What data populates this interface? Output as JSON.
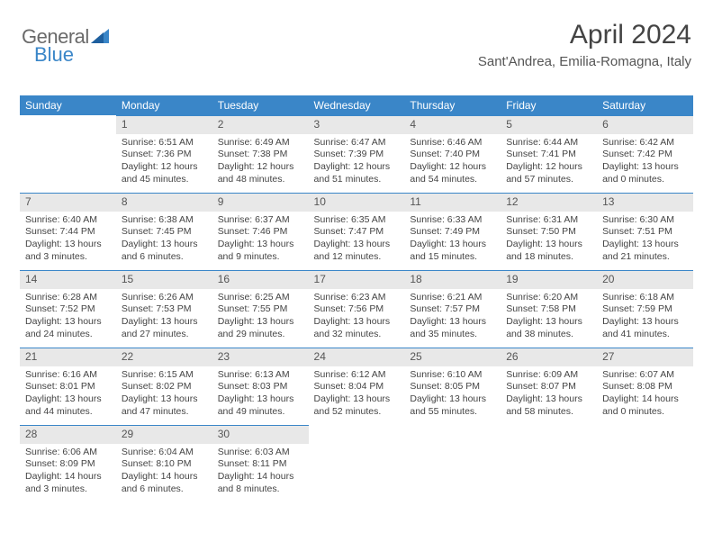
{
  "brand": {
    "part1": "General",
    "part2": "Blue"
  },
  "colors": {
    "accent": "#3a86c8",
    "header_bg": "#3a86c8",
    "header_text": "#ffffff",
    "daynum_bg": "#e8e8e8",
    "text": "#444444",
    "background": "#ffffff"
  },
  "title": "April 2024",
  "location": "Sant'Andrea, Emilia-Romagna, Italy",
  "weekdays": [
    "Sunday",
    "Monday",
    "Tuesday",
    "Wednesday",
    "Thursday",
    "Friday",
    "Saturday"
  ],
  "calendar": {
    "type": "table",
    "columns": 7,
    "start_weekday_index": 1,
    "days": [
      {
        "n": 1,
        "sunrise": "6:51 AM",
        "sunset": "7:36 PM",
        "daylight": "12 hours and 45 minutes."
      },
      {
        "n": 2,
        "sunrise": "6:49 AM",
        "sunset": "7:38 PM",
        "daylight": "12 hours and 48 minutes."
      },
      {
        "n": 3,
        "sunrise": "6:47 AM",
        "sunset": "7:39 PM",
        "daylight": "12 hours and 51 minutes."
      },
      {
        "n": 4,
        "sunrise": "6:46 AM",
        "sunset": "7:40 PM",
        "daylight": "12 hours and 54 minutes."
      },
      {
        "n": 5,
        "sunrise": "6:44 AM",
        "sunset": "7:41 PM",
        "daylight": "12 hours and 57 minutes."
      },
      {
        "n": 6,
        "sunrise": "6:42 AM",
        "sunset": "7:42 PM",
        "daylight": "13 hours and 0 minutes."
      },
      {
        "n": 7,
        "sunrise": "6:40 AM",
        "sunset": "7:44 PM",
        "daylight": "13 hours and 3 minutes."
      },
      {
        "n": 8,
        "sunrise": "6:38 AM",
        "sunset": "7:45 PM",
        "daylight": "13 hours and 6 minutes."
      },
      {
        "n": 9,
        "sunrise": "6:37 AM",
        "sunset": "7:46 PM",
        "daylight": "13 hours and 9 minutes."
      },
      {
        "n": 10,
        "sunrise": "6:35 AM",
        "sunset": "7:47 PM",
        "daylight": "13 hours and 12 minutes."
      },
      {
        "n": 11,
        "sunrise": "6:33 AM",
        "sunset": "7:49 PM",
        "daylight": "13 hours and 15 minutes."
      },
      {
        "n": 12,
        "sunrise": "6:31 AM",
        "sunset": "7:50 PM",
        "daylight": "13 hours and 18 minutes."
      },
      {
        "n": 13,
        "sunrise": "6:30 AM",
        "sunset": "7:51 PM",
        "daylight": "13 hours and 21 minutes."
      },
      {
        "n": 14,
        "sunrise": "6:28 AM",
        "sunset": "7:52 PM",
        "daylight": "13 hours and 24 minutes."
      },
      {
        "n": 15,
        "sunrise": "6:26 AM",
        "sunset": "7:53 PM",
        "daylight": "13 hours and 27 minutes."
      },
      {
        "n": 16,
        "sunrise": "6:25 AM",
        "sunset": "7:55 PM",
        "daylight": "13 hours and 29 minutes."
      },
      {
        "n": 17,
        "sunrise": "6:23 AM",
        "sunset": "7:56 PM",
        "daylight": "13 hours and 32 minutes."
      },
      {
        "n": 18,
        "sunrise": "6:21 AM",
        "sunset": "7:57 PM",
        "daylight": "13 hours and 35 minutes."
      },
      {
        "n": 19,
        "sunrise": "6:20 AM",
        "sunset": "7:58 PM",
        "daylight": "13 hours and 38 minutes."
      },
      {
        "n": 20,
        "sunrise": "6:18 AM",
        "sunset": "7:59 PM",
        "daylight": "13 hours and 41 minutes."
      },
      {
        "n": 21,
        "sunrise": "6:16 AM",
        "sunset": "8:01 PM",
        "daylight": "13 hours and 44 minutes."
      },
      {
        "n": 22,
        "sunrise": "6:15 AM",
        "sunset": "8:02 PM",
        "daylight": "13 hours and 47 minutes."
      },
      {
        "n": 23,
        "sunrise": "6:13 AM",
        "sunset": "8:03 PM",
        "daylight": "13 hours and 49 minutes."
      },
      {
        "n": 24,
        "sunrise": "6:12 AM",
        "sunset": "8:04 PM",
        "daylight": "13 hours and 52 minutes."
      },
      {
        "n": 25,
        "sunrise": "6:10 AM",
        "sunset": "8:05 PM",
        "daylight": "13 hours and 55 minutes."
      },
      {
        "n": 26,
        "sunrise": "6:09 AM",
        "sunset": "8:07 PM",
        "daylight": "13 hours and 58 minutes."
      },
      {
        "n": 27,
        "sunrise": "6:07 AM",
        "sunset": "8:08 PM",
        "daylight": "14 hours and 0 minutes."
      },
      {
        "n": 28,
        "sunrise": "6:06 AM",
        "sunset": "8:09 PM",
        "daylight": "14 hours and 3 minutes."
      },
      {
        "n": 29,
        "sunrise": "6:04 AM",
        "sunset": "8:10 PM",
        "daylight": "14 hours and 6 minutes."
      },
      {
        "n": 30,
        "sunrise": "6:03 AM",
        "sunset": "8:11 PM",
        "daylight": "14 hours and 8 minutes."
      }
    ]
  },
  "labels": {
    "sunrise_prefix": "Sunrise: ",
    "sunset_prefix": "Sunset: ",
    "daylight_prefix": "Daylight: "
  }
}
